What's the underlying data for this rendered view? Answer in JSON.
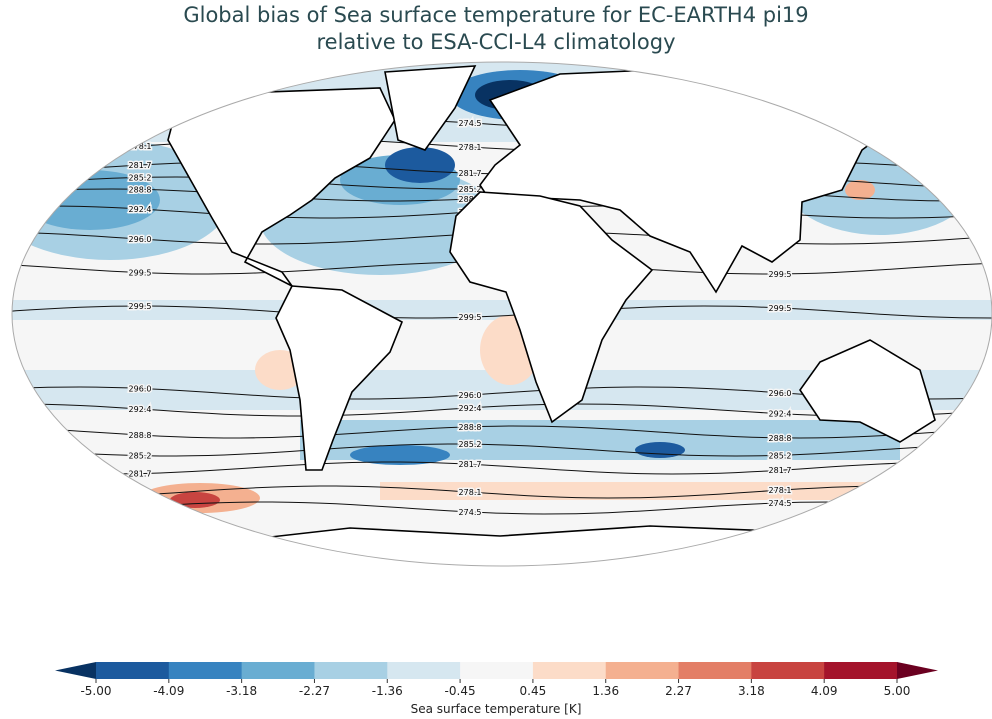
{
  "title_line1": "Global bias of Sea surface temperature for EC-EARTH4 pi19",
  "title_line2": "relative to ESA-CCI-L4 climatology",
  "colorbar": {
    "label": "Sea surface temperature [K]",
    "ticks": [
      "-5.00",
      "-4.09",
      "-3.18",
      "-2.27",
      "-1.36",
      "-0.45",
      "0.45",
      "1.36",
      "2.27",
      "3.18",
      "4.09",
      "5.00"
    ],
    "colors": [
      "#1c5a9e",
      "#3783c0",
      "#69add2",
      "#a8d0e4",
      "#d6e7f0",
      "#f6f6f6",
      "#fcdcc8",
      "#f4b090",
      "#e37e66",
      "#c84440",
      "#a4132b"
    ],
    "extend_low_color": "#083262",
    "extend_high_color": "#6b0020"
  },
  "contours": {
    "levels": [
      "274.5",
      "278.1",
      "281.7",
      "285.2",
      "288.8",
      "292.4",
      "296.0",
      "299.5"
    ],
    "north": {
      "274.5": 125,
      "278.1": 145,
      "281.7": 168,
      "285.2": 183,
      "288.8": 195,
      "292.4": 212,
      "296.0": 238,
      "299.5": 268
    },
    "south": {
      "299.5": 312,
      "296.0": 393,
      "292.4": 410,
      "288.8": 432,
      "285.2": 450,
      "281.7": 468,
      "278.1": 492,
      "274.5": 508
    }
  }
}
